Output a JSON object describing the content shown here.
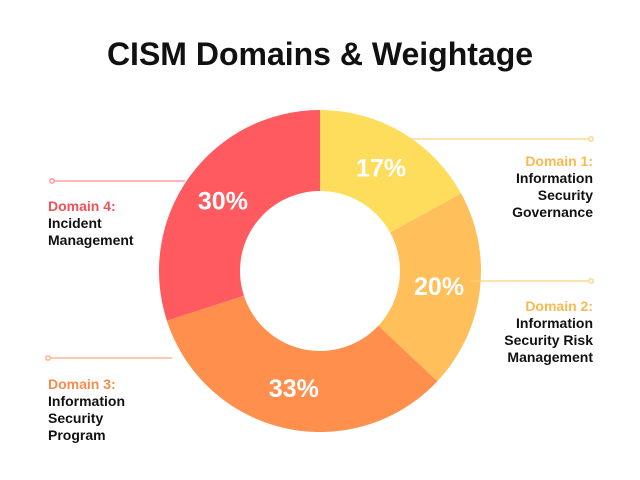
{
  "chart_data": {
    "type": "pie",
    "title": "CISM Domains & Weightage",
    "categories": [
      "Domain 1: Information Security Governance",
      "Domain 2: Information Security Risk Management",
      "Domain 3: Information Security Program",
      "Domain 4: Incident Management"
    ],
    "values": [
      17,
      20,
      33,
      30
    ],
    "data_labels": [
      "17%",
      "20%",
      "33%",
      "30%"
    ],
    "slices": [
      {
        "domain": "Domain 1:",
        "name_lines": [
          "Information",
          "Security",
          "Governance"
        ],
        "value": 17,
        "label": "17%",
        "color": "#FFDD5C"
      },
      {
        "domain": "Domain 2:",
        "name_lines": [
          "Information",
          "Security Risk",
          "Management"
        ],
        "value": 20,
        "label": "20%",
        "color": "#FFBF5A"
      },
      {
        "domain": "Domain 3:",
        "name_lines": [
          "Information",
          "Security",
          "Program"
        ],
        "value": 33,
        "label": "33%",
        "color": "#FF8F4C"
      },
      {
        "domain": "Domain 4:",
        "name_lines": [
          "Incident",
          "Management"
        ],
        "value": 30,
        "label": "30%",
        "color": "#FF5A5F"
      }
    ],
    "hole": "donut",
    "label_colors": {
      "domain_1": "#F7B950",
      "domain_2": "#F7B950",
      "domain_3": "#F78C4B",
      "domain_4": "#F0525A"
    },
    "line_color": "#FFD27F"
  }
}
